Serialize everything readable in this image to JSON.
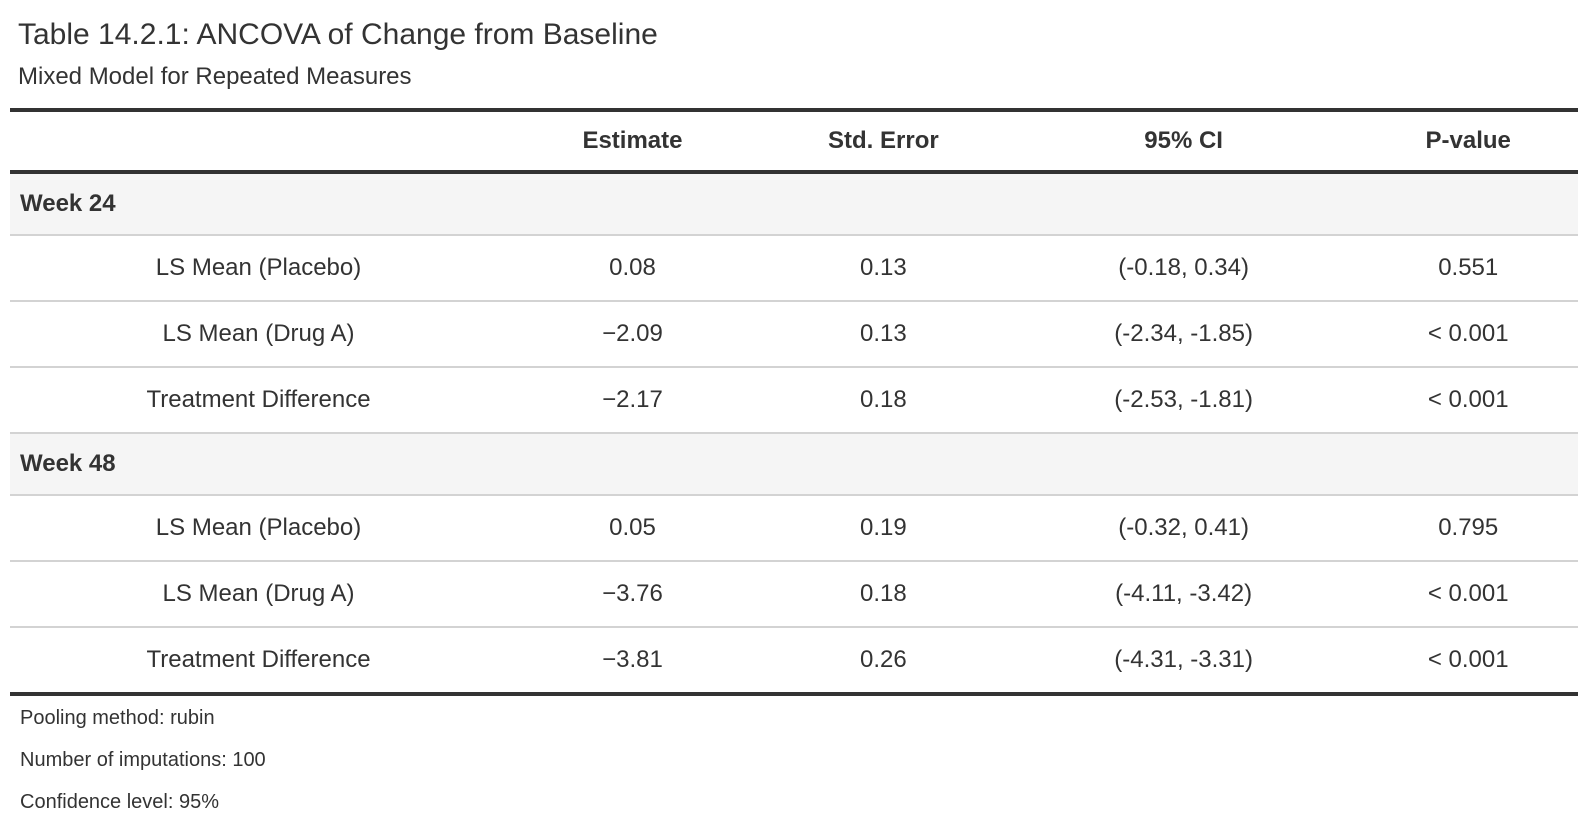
{
  "title": "Table 14.2.1: ANCOVA of Change from Baseline",
  "subtitle": "Mixed Model for Repeated Measures",
  "table": {
    "columns": [
      "",
      "Estimate",
      "Std. Error",
      "95% CI",
      "P-value"
    ],
    "groups": [
      {
        "label": "Week 24",
        "rows": [
          {
            "label": "LS Mean (Placebo)",
            "estimate": "0.08",
            "std_error": "0.13",
            "ci": "(-0.18, 0.34)",
            "p_value": "0.551"
          },
          {
            "label": "LS Mean (Drug A)",
            "estimate": "−2.09",
            "std_error": "0.13",
            "ci": "(-2.34, -1.85)",
            "p_value": "< 0.001"
          },
          {
            "label": "Treatment Difference",
            "estimate": "−2.17",
            "std_error": "0.18",
            "ci": "(-2.53, -1.81)",
            "p_value": "< 0.001"
          }
        ]
      },
      {
        "label": "Week 48",
        "rows": [
          {
            "label": "LS Mean (Placebo)",
            "estimate": "0.05",
            "std_error": "0.19",
            "ci": "(-0.32, 0.41)",
            "p_value": "0.795"
          },
          {
            "label": "LS Mean (Drug A)",
            "estimate": "−3.76",
            "std_error": "0.18",
            "ci": "(-4.11, -3.42)",
            "p_value": "< 0.001"
          },
          {
            "label": "Treatment Difference",
            "estimate": "−3.81",
            "std_error": "0.26",
            "ci": "(-4.31, -3.31)",
            "p_value": "< 0.001"
          }
        ]
      }
    ]
  },
  "footnotes": [
    "Pooling method: rubin",
    "Number of imputations: 100",
    "Confidence level: 95%"
  ],
  "colors": {
    "text": "#333333",
    "heavy_rule": "#333333",
    "light_rule": "#d3d3d3",
    "group_row_background": "#f5f5f5",
    "page_background": "#ffffff"
  }
}
